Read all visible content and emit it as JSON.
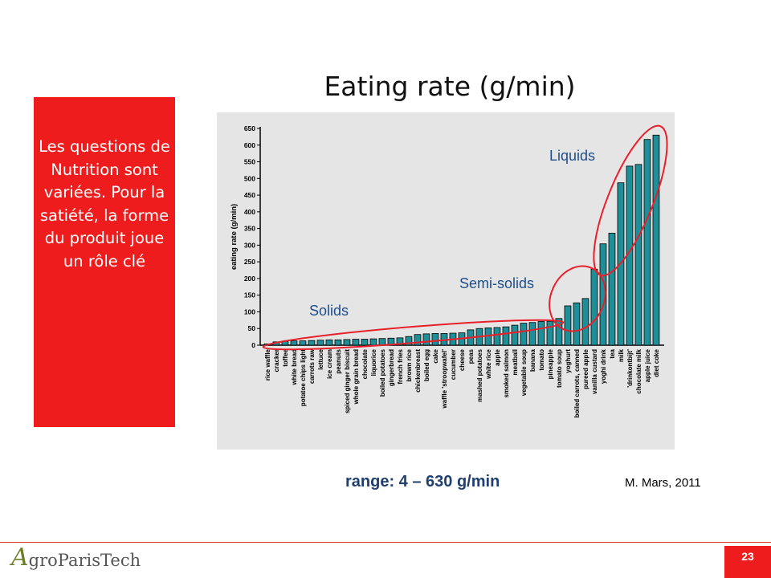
{
  "slide": {
    "title": "Eating rate (g/min)",
    "side_text": "Les questions de Nutrition sont variées. Pour la satiété, la forme du produit joue un rôle clé",
    "range_text": "range: 4 – 630 g/min",
    "credit": "M. Mars, 2011",
    "page_number": "23",
    "logo": {
      "mark": "A",
      "text": "groParisTech"
    }
  },
  "colors": {
    "bar": "#1e8f99",
    "accent_red": "#ee1c1c",
    "ellipse": "#e8202a",
    "label_blue": "#1f4e8c"
  },
  "chart_data": {
    "type": "bar",
    "ylabel": "eating rate (g/min)",
    "ylim": [
      0,
      650
    ],
    "yticks": [
      0,
      50,
      100,
      150,
      200,
      250,
      300,
      350,
      400,
      450,
      500,
      550,
      600,
      650
    ],
    "grid": false,
    "categories": [
      "rice waffle",
      "cracker",
      "toffee",
      "white bread",
      "potatoe chips light",
      "carrots raw",
      "lettuce",
      "ice cream",
      "peanuts",
      "spiced ginger biscuit",
      "whole grain bread",
      "chocolate",
      "liquorice",
      "boiled potatoes",
      "gingerbread",
      "french fries",
      "brown rice",
      "chickenbreast",
      "boiled egg",
      "cake",
      "waffle 'stroopwafel'",
      "cucumber",
      "cheese",
      "peas",
      "mashed potatoes",
      "white rice",
      "apple",
      "smoked salmon",
      "meatball",
      "vegetable soup",
      "banana",
      "tomato",
      "pineapple",
      "tomato soup",
      "yoghurt",
      "boiled carrots, canned",
      "pureed apple",
      "vanilla custard",
      "yoghi drink",
      "tea",
      "milk",
      "'drinkontbijt'",
      "chocolate milk",
      "apple juice",
      "diet coke"
    ],
    "values": [
      4,
      10,
      12,
      13,
      13,
      14,
      15,
      16,
      16,
      17,
      18,
      18,
      19,
      20,
      21,
      22,
      26,
      32,
      34,
      35,
      35,
      36,
      37,
      46,
      50,
      52,
      53,
      55,
      60,
      66,
      68,
      71,
      72,
      80,
      118,
      127,
      140,
      228,
      304,
      336,
      487,
      537,
      542,
      617,
      630
    ],
    "annotations": [
      "Solids",
      "Semi-solids",
      "Liquids"
    ]
  }
}
